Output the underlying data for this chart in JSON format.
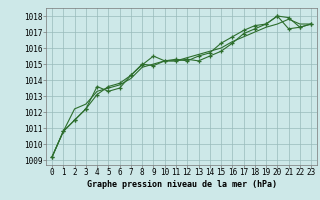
{
  "title": "Graphe pression niveau de la mer (hPa)",
  "bg_color": "#cde8e8",
  "grid_color": "#99bbbb",
  "line_color": "#2d6e2d",
  "marker_color": "#2d6e2d",
  "xlim": [
    -0.5,
    23.5
  ],
  "ylim": [
    1008.7,
    1018.5
  ],
  "yticks": [
    1009,
    1010,
    1011,
    1012,
    1013,
    1014,
    1015,
    1016,
    1017,
    1018
  ],
  "xticks": [
    0,
    1,
    2,
    3,
    4,
    5,
    6,
    7,
    8,
    9,
    10,
    11,
    12,
    13,
    14,
    15,
    16,
    17,
    18,
    19,
    20,
    21,
    22,
    23
  ],
  "series1_x": [
    0,
    1,
    2,
    3,
    4,
    5,
    6,
    7,
    8,
    9,
    10,
    11,
    12,
    13,
    14,
    15,
    16,
    17,
    18,
    19,
    20,
    21,
    22,
    23
  ],
  "series1_y": [
    1009.2,
    1010.8,
    1011.5,
    1012.2,
    1013.1,
    1013.6,
    1013.8,
    1014.3,
    1015.0,
    1014.9,
    1015.2,
    1015.2,
    1015.3,
    1015.2,
    1015.5,
    1015.8,
    1016.3,
    1016.9,
    1017.2,
    1017.5,
    1018.0,
    1017.2,
    1017.3,
    1017.5
  ],
  "series2_x": [
    0,
    1,
    2,
    3,
    4,
    5,
    6,
    7,
    8,
    9,
    10,
    11,
    12,
    13,
    14,
    15,
    16,
    17,
    18,
    19,
    20,
    21,
    22,
    23
  ],
  "series2_y": [
    1009.2,
    1010.8,
    1011.5,
    1012.2,
    1013.6,
    1013.3,
    1013.5,
    1014.3,
    1014.95,
    1015.5,
    1015.2,
    1015.3,
    1015.2,
    1015.5,
    1015.7,
    1016.3,
    1016.7,
    1017.1,
    1017.4,
    1017.5,
    1018.0,
    1017.9,
    1017.3,
    1017.5
  ],
  "series3_x": [
    0,
    1,
    2,
    3,
    4,
    5,
    6,
    7,
    8,
    9,
    10,
    11,
    12,
    13,
    14,
    15,
    16,
    17,
    18,
    19,
    20,
    21,
    22,
    23
  ],
  "series3_y": [
    1009.2,
    1010.8,
    1012.2,
    1012.5,
    1013.3,
    1013.5,
    1013.7,
    1014.1,
    1014.8,
    1015.0,
    1015.2,
    1015.2,
    1015.4,
    1015.6,
    1015.8,
    1016.0,
    1016.4,
    1016.7,
    1017.0,
    1017.3,
    1017.5,
    1017.8,
    1017.5,
    1017.5
  ],
  "xlabel_fontsize": 6.0,
  "tick_fontsize": 5.5
}
